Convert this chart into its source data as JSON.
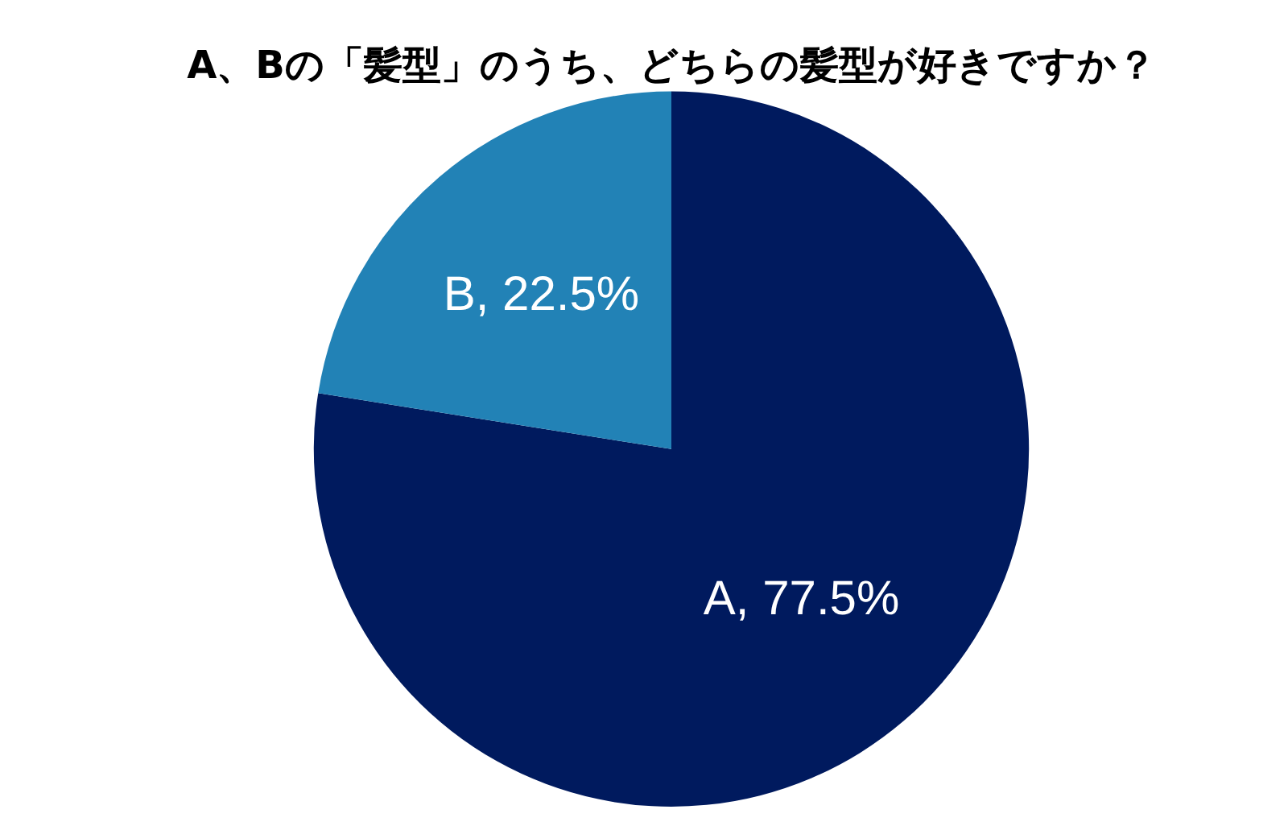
{
  "chart_data": {
    "type": "pie",
    "title": "A、Bの「髪型」のうち、どちらの髪型が好きですか？",
    "categories": [
      "A",
      "B"
    ],
    "values": [
      77.5,
      22.5
    ],
    "colors": [
      "#001a5e",
      "#2282b6"
    ],
    "value_labels": [
      ", 77.5%",
      ", 22.5%"
    ],
    "legend": false
  }
}
